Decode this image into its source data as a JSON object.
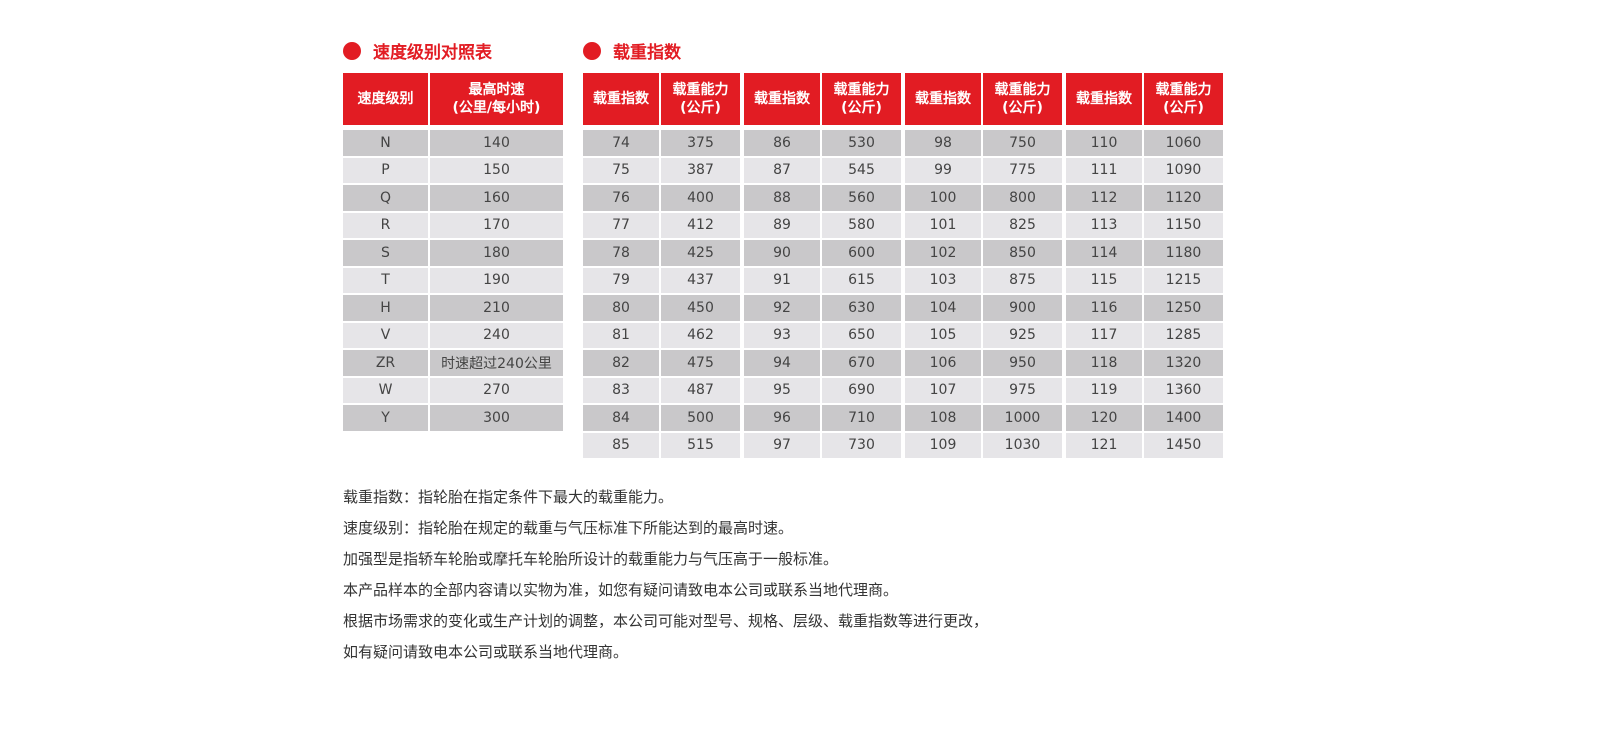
{
  "speed": {
    "title": "速度级别对照表",
    "headers": [
      "速度级别",
      "最高时速",
      "(公里/每小时)"
    ],
    "rows": [
      [
        "N",
        "140"
      ],
      [
        "P",
        "150"
      ],
      [
        "Q",
        "160"
      ],
      [
        "R",
        "170"
      ],
      [
        "S",
        "180"
      ],
      [
        "T",
        "190"
      ],
      [
        "H",
        "210"
      ],
      [
        "V",
        "240"
      ],
      [
        "ZR",
        "时速超过240公里"
      ],
      [
        "W",
        "270"
      ],
      [
        "Y",
        "300"
      ]
    ]
  },
  "load": {
    "title": "载重指数",
    "headers": [
      "载重指数",
      "载重能力",
      "(公斤)"
    ],
    "groups": [
      [
        [
          "74",
          "375"
        ],
        [
          "75",
          "387"
        ],
        [
          "76",
          "400"
        ],
        [
          "77",
          "412"
        ],
        [
          "78",
          "425"
        ],
        [
          "79",
          "437"
        ],
        [
          "80",
          "450"
        ],
        [
          "81",
          "462"
        ],
        [
          "82",
          "475"
        ],
        [
          "83",
          "487"
        ],
        [
          "84",
          "500"
        ],
        [
          "85",
          "515"
        ]
      ],
      [
        [
          "86",
          "530"
        ],
        [
          "87",
          "545"
        ],
        [
          "88",
          "560"
        ],
        [
          "89",
          "580"
        ],
        [
          "90",
          "600"
        ],
        [
          "91",
          "615"
        ],
        [
          "92",
          "630"
        ],
        [
          "93",
          "650"
        ],
        [
          "94",
          "670"
        ],
        [
          "95",
          "690"
        ],
        [
          "96",
          "710"
        ],
        [
          "97",
          "730"
        ]
      ],
      [
        [
          "98",
          "750"
        ],
        [
          "99",
          "775"
        ],
        [
          "100",
          "800"
        ],
        [
          "101",
          "825"
        ],
        [
          "102",
          "850"
        ],
        [
          "103",
          "875"
        ],
        [
          "104",
          "900"
        ],
        [
          "105",
          "925"
        ],
        [
          "106",
          "950"
        ],
        [
          "107",
          "975"
        ],
        [
          "108",
          "1000"
        ],
        [
          "109",
          "1030"
        ]
      ],
      [
        [
          "110",
          "1060"
        ],
        [
          "111",
          "1090"
        ],
        [
          "112",
          "1120"
        ],
        [
          "113",
          "1150"
        ],
        [
          "114",
          "1180"
        ],
        [
          "115",
          "1215"
        ],
        [
          "116",
          "1250"
        ],
        [
          "117",
          "1285"
        ],
        [
          "118",
          "1320"
        ],
        [
          "119",
          "1360"
        ],
        [
          "120",
          "1400"
        ],
        [
          "121",
          "1450"
        ]
      ]
    ]
  },
  "notes": [
    "载重指数：指轮胎在指定条件下最大的载重能力。",
    "速度级别：指轮胎在规定的载重与气压标准下所能达到的最高时速。",
    "加强型是指轿车轮胎或摩托车轮胎所设计的载重能力与气压高于一般标准。",
    "本产品样本的全部内容请以实物为准，如您有疑问请致电本公司或联系当地代理商。",
    "根据市场需求的变化或生产计划的调整，本公司可能对型号、规格、层级、载重指数等进行更改，",
    "如有疑问请致电本公司或联系当地代理商。"
  ],
  "colors": {
    "accent": "#e21c23",
    "row_dark": "#c9c8ca",
    "row_light": "#e6e5e8"
  }
}
